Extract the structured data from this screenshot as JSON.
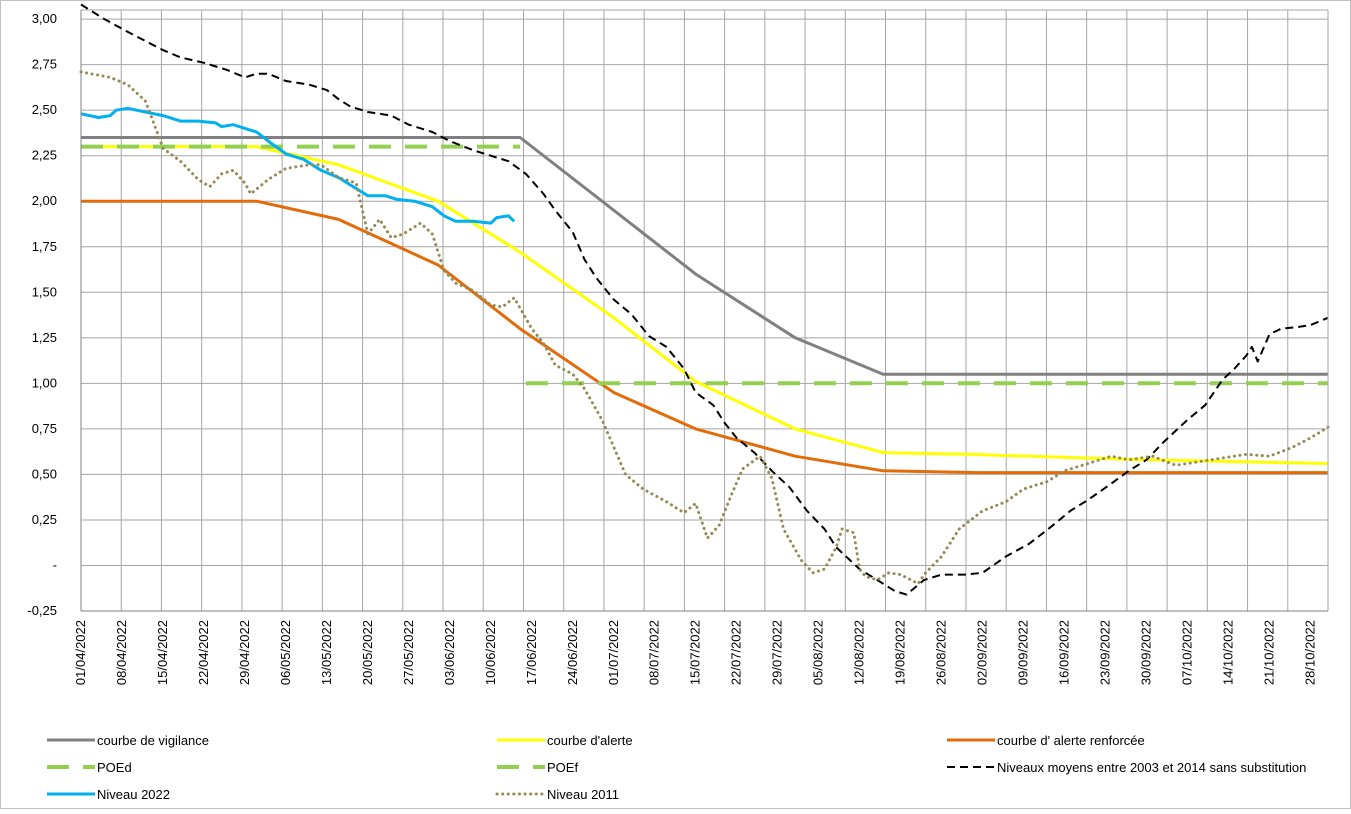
{
  "chart_data": {
    "type": "line",
    "title": "",
    "xlabel": "",
    "ylabel": "",
    "x_start": "01/04/2022",
    "x_end": "31/10/2022",
    "x_tick_labels": [
      "01/04/2022",
      "08/04/2022",
      "15/04/2022",
      "22/04/2022",
      "29/04/2022",
      "06/05/2022",
      "13/05/2022",
      "20/05/2022",
      "27/05/2022",
      "03/06/2022",
      "10/06/2022",
      "17/06/2022",
      "24/06/2022",
      "01/07/2022",
      "08/07/2022",
      "15/07/2022",
      "22/07/2022",
      "29/07/2022",
      "05/08/2022",
      "12/08/2022",
      "19/08/2022",
      "26/08/2022",
      "02/09/2022",
      "09/09/2022",
      "16/09/2022",
      "23/09/2022",
      "30/09/2022",
      "07/10/2022",
      "14/10/2022",
      "21/10/2022",
      "28/10/2022"
    ],
    "y_ticks": [
      -0.25,
      0,
      0.25,
      0.5,
      0.75,
      1,
      1.25,
      1.5,
      1.75,
      2,
      2.25,
      2.5,
      2.75,
      3
    ],
    "y_tick_labels": [
      "-0,25",
      "-",
      "0,25",
      "0,50",
      "0,75",
      "1,00",
      "1,25",
      "1,50",
      "1,75",
      "2,00",
      "2,25",
      "2,50",
      "2,75",
      "3,00"
    ],
    "ylim": [
      -0.25,
      3.05
    ],
    "grid": true,
    "legend_position": "bottom",
    "series": [
      {
        "name": "courbe de vigilance",
        "color": "#808080",
        "style": "solid",
        "points": [
          [
            "01/04/2022",
            2.35
          ],
          [
            "15/06/2022",
            2.35
          ],
          [
            "01/07/2022",
            1.95
          ],
          [
            "15/07/2022",
            1.6
          ],
          [
            "01/08/2022",
            1.25
          ],
          [
            "16/08/2022",
            1.05
          ],
          [
            "31/10/2022",
            1.05
          ]
        ]
      },
      {
        "name": "courbe d'alerte",
        "color": "#ffff00",
        "style": "solid",
        "points": [
          [
            "01/04/2022",
            2.3
          ],
          [
            "01/05/2022",
            2.3
          ],
          [
            "15/05/2022",
            2.2
          ],
          [
            "01/06/2022",
            2.0
          ],
          [
            "15/06/2022",
            1.72
          ],
          [
            "01/07/2022",
            1.36
          ],
          [
            "15/07/2022",
            1.01
          ],
          [
            "01/08/2022",
            0.75
          ],
          [
            "16/08/2022",
            0.62
          ],
          [
            "31/08/2022",
            0.61
          ],
          [
            "30/09/2022",
            0.58
          ],
          [
            "31/10/2022",
            0.56
          ]
        ]
      },
      {
        "name": "courbe d' alerte renforcée",
        "color": "#e36c0a",
        "style": "solid",
        "points": [
          [
            "01/04/2022",
            2.0
          ],
          [
            "01/05/2022",
            2.0
          ],
          [
            "15/05/2022",
            1.9
          ],
          [
            "01/06/2022",
            1.65
          ],
          [
            "15/06/2022",
            1.3
          ],
          [
            "01/07/2022",
            0.95
          ],
          [
            "15/07/2022",
            0.75
          ],
          [
            "01/08/2022",
            0.6
          ],
          [
            "16/08/2022",
            0.52
          ],
          [
            "01/09/2022",
            0.51
          ],
          [
            "31/10/2022",
            0.51
          ]
        ]
      },
      {
        "name": "POEd",
        "color": "#92d050",
        "style": "dashed-thick",
        "points": [
          [
            "01/04/2022",
            2.3
          ],
          [
            "15/06/2022",
            2.3
          ]
        ]
      },
      {
        "name": "POEf",
        "color": "#92d050",
        "style": "dashed-thick",
        "points": [
          [
            "16/06/2022",
            1.0
          ],
          [
            "31/10/2022",
            1.0
          ]
        ]
      },
      {
        "name": "Niveaux moyens entre 2003 et 2014 sans substitution",
        "color": "#000000",
        "style": "dashed",
        "points": [
          [
            "01/04/2022",
            3.08
          ],
          [
            "05/04/2022",
            3.0
          ],
          [
            "09/04/2022",
            2.93
          ],
          [
            "12/04/2022",
            2.88
          ],
          [
            "15/04/2022",
            2.83
          ],
          [
            "18/04/2022",
            2.79
          ],
          [
            "22/04/2022",
            2.76
          ],
          [
            "26/04/2022",
            2.72
          ],
          [
            "29/04/2022",
            2.68
          ],
          [
            "01/05/2022",
            2.7
          ],
          [
            "03/05/2022",
            2.7
          ],
          [
            "06/05/2022",
            2.66
          ],
          [
            "10/05/2022",
            2.64
          ],
          [
            "13/05/2022",
            2.61
          ],
          [
            "15/05/2022",
            2.56
          ],
          [
            "17/05/2022",
            2.52
          ],
          [
            "20/05/2022",
            2.49
          ],
          [
            "24/05/2022",
            2.47
          ],
          [
            "27/05/2022",
            2.42
          ],
          [
            "31/05/2022",
            2.38
          ],
          [
            "03/06/2022",
            2.33
          ],
          [
            "07/06/2022",
            2.28
          ],
          [
            "10/06/2022",
            2.25
          ],
          [
            "13/06/2022",
            2.22
          ],
          [
            "16/06/2022",
            2.15
          ],
          [
            "19/06/2022",
            2.04
          ],
          [
            "21/06/2022",
            1.95
          ],
          [
            "24/06/2022",
            1.83
          ],
          [
            "26/06/2022",
            1.68
          ],
          [
            "28/06/2022",
            1.58
          ],
          [
            "01/07/2022",
            1.46
          ],
          [
            "04/07/2022",
            1.38
          ],
          [
            "07/07/2022",
            1.26
          ],
          [
            "10/07/2022",
            1.2
          ],
          [
            "13/07/2022",
            1.08
          ],
          [
            "15/07/2022",
            0.95
          ],
          [
            "18/07/2022",
            0.88
          ],
          [
            "20/07/2022",
            0.78
          ],
          [
            "22/07/2022",
            0.7
          ],
          [
            "25/07/2022",
            0.62
          ],
          [
            "28/07/2022",
            0.52
          ],
          [
            "31/07/2022",
            0.43
          ],
          [
            "03/08/2022",
            0.3
          ],
          [
            "06/08/2022",
            0.2
          ],
          [
            "08/08/2022",
            0.1
          ],
          [
            "12/08/2022",
            -0.02
          ],
          [
            "15/08/2022",
            -0.08
          ],
          [
            "18/08/2022",
            -0.14
          ],
          [
            "20/08/2022",
            -0.16
          ],
          [
            "23/08/2022",
            -0.08
          ],
          [
            "26/08/2022",
            -0.05
          ],
          [
            "30/08/2022",
            -0.05
          ],
          [
            "02/09/2022",
            -0.04
          ],
          [
            "06/09/2022",
            0.05
          ],
          [
            "10/09/2022",
            0.12
          ],
          [
            "14/09/2022",
            0.22
          ],
          [
            "17/09/2022",
            0.3
          ],
          [
            "20/09/2022",
            0.36
          ],
          [
            "24/09/2022",
            0.45
          ],
          [
            "27/09/2022",
            0.52
          ],
          [
            "30/09/2022",
            0.58
          ],
          [
            "03/10/2022",
            0.68
          ],
          [
            "07/10/2022",
            0.8
          ],
          [
            "10/10/2022",
            0.88
          ],
          [
            "13/10/2022",
            1.02
          ],
          [
            "15/10/2022",
            1.08
          ],
          [
            "17/10/2022",
            1.15
          ],
          [
            "18/10/2022",
            1.2
          ],
          [
            "19/10/2022",
            1.12
          ],
          [
            "21/10/2022",
            1.27
          ],
          [
            "23/10/2022",
            1.3
          ],
          [
            "26/10/2022",
            1.31
          ],
          [
            "28/10/2022",
            1.32
          ],
          [
            "31/10/2022",
            1.36
          ]
        ]
      },
      {
        "name": "Niveau 2022",
        "color": "#00b0f0",
        "style": "solid",
        "points": [
          [
            "01/04/2022",
            2.48
          ],
          [
            "04/04/2022",
            2.46
          ],
          [
            "06/04/2022",
            2.47
          ],
          [
            "07/04/2022",
            2.5
          ],
          [
            "09/04/2022",
            2.51
          ],
          [
            "12/04/2022",
            2.49
          ],
          [
            "15/04/2022",
            2.47
          ],
          [
            "18/04/2022",
            2.44
          ],
          [
            "21/04/2022",
            2.44
          ],
          [
            "24/04/2022",
            2.43
          ],
          [
            "25/04/2022",
            2.41
          ],
          [
            "27/04/2022",
            2.42
          ],
          [
            "29/04/2022",
            2.4
          ],
          [
            "01/05/2022",
            2.38
          ],
          [
            "03/05/2022",
            2.33
          ],
          [
            "06/05/2022",
            2.26
          ],
          [
            "09/05/2022",
            2.23
          ],
          [
            "12/05/2022",
            2.17
          ],
          [
            "15/05/2022",
            2.13
          ],
          [
            "18/05/2022",
            2.07
          ],
          [
            "20/05/2022",
            2.03
          ],
          [
            "23/05/2022",
            2.03
          ],
          [
            "25/05/2022",
            2.01
          ],
          [
            "28/05/2022",
            2.0
          ],
          [
            "31/05/2022",
            1.97
          ],
          [
            "02/06/2022",
            1.92
          ],
          [
            "04/06/2022",
            1.89
          ],
          [
            "07/06/2022",
            1.89
          ],
          [
            "10/06/2022",
            1.88
          ],
          [
            "11/06/2022",
            1.91
          ],
          [
            "13/06/2022",
            1.92
          ],
          [
            "14/06/2022",
            1.89
          ]
        ]
      },
      {
        "name": "Niveau 2011",
        "color": "#948a54",
        "style": "dotted",
        "points": [
          [
            "01/04/2022",
            2.71
          ],
          [
            "06/04/2022",
            2.68
          ],
          [
            "09/04/2022",
            2.64
          ],
          [
            "12/04/2022",
            2.55
          ],
          [
            "14/04/2022",
            2.38
          ],
          [
            "15/04/2022",
            2.29
          ],
          [
            "18/04/2022",
            2.22
          ],
          [
            "21/04/2022",
            2.12
          ],
          [
            "23/04/2022",
            2.08
          ],
          [
            "25/04/2022",
            2.15
          ],
          [
            "27/04/2022",
            2.17
          ],
          [
            "29/04/2022",
            2.1
          ],
          [
            "30/04/2022",
            2.04
          ],
          [
            "03/05/2022",
            2.12
          ],
          [
            "06/05/2022",
            2.18
          ],
          [
            "10/05/2022",
            2.2
          ],
          [
            "12/05/2022",
            2.2
          ],
          [
            "15/05/2022",
            2.13
          ],
          [
            "18/05/2022",
            2.1
          ],
          [
            "20/05/2022",
            1.82
          ],
          [
            "22/05/2022",
            1.9
          ],
          [
            "24/05/2022",
            1.8
          ],
          [
            "26/05/2022",
            1.82
          ],
          [
            "29/05/2022",
            1.88
          ],
          [
            "31/05/2022",
            1.82
          ],
          [
            "02/06/2022",
            1.62
          ],
          [
            "04/06/2022",
            1.55
          ],
          [
            "07/06/2022",
            1.51
          ],
          [
            "10/06/2022",
            1.43
          ],
          [
            "12/06/2022",
            1.42
          ],
          [
            "14/06/2022",
            1.47
          ],
          [
            "17/06/2022",
            1.3
          ],
          [
            "19/06/2022",
            1.22
          ],
          [
            "21/06/2022",
            1.1
          ],
          [
            "24/06/2022",
            1.05
          ],
          [
            "26/06/2022",
            0.97
          ],
          [
            "29/06/2022",
            0.8
          ],
          [
            "01/07/2022",
            0.65
          ],
          [
            "03/07/2022",
            0.5
          ],
          [
            "06/07/2022",
            0.42
          ],
          [
            "10/07/2022",
            0.35
          ],
          [
            "13/07/2022",
            0.29
          ],
          [
            "15/07/2022",
            0.34
          ],
          [
            "17/07/2022",
            0.15
          ],
          [
            "19/07/2022",
            0.22
          ],
          [
            "21/07/2022",
            0.38
          ],
          [
            "23/07/2022",
            0.53
          ],
          [
            "26/07/2022",
            0.6
          ],
          [
            "28/07/2022",
            0.48
          ],
          [
            "30/07/2022",
            0.2
          ],
          [
            "02/08/2022",
            0.03
          ],
          [
            "04/08/2022",
            -0.04
          ],
          [
            "06/08/2022",
            -0.02
          ],
          [
            "08/08/2022",
            0.1
          ],
          [
            "09/08/2022",
            0.2
          ],
          [
            "11/08/2022",
            0.18
          ],
          [
            "12/08/2022",
            -0.02
          ],
          [
            "13/08/2022",
            -0.06
          ],
          [
            "15/08/2022",
            -0.08
          ],
          [
            "17/08/2022",
            -0.04
          ],
          [
            "19/08/2022",
            -0.05
          ],
          [
            "22/08/2022",
            -0.1
          ],
          [
            "23/08/2022",
            -0.05
          ],
          [
            "26/08/2022",
            0.05
          ],
          [
            "29/08/2022",
            0.2
          ],
          [
            "02/09/2022",
            0.3
          ],
          [
            "06/09/2022",
            0.35
          ],
          [
            "09/09/2022",
            0.42
          ],
          [
            "13/09/2022",
            0.46
          ],
          [
            "16/09/2022",
            0.52
          ],
          [
            "20/09/2022",
            0.56
          ],
          [
            "24/09/2022",
            0.6
          ],
          [
            "27/09/2022",
            0.58
          ],
          [
            "01/10/2022",
            0.6
          ],
          [
            "05/10/2022",
            0.55
          ],
          [
            "09/10/2022",
            0.57
          ],
          [
            "13/10/2022",
            0.59
          ],
          [
            "17/10/2022",
            0.61
          ],
          [
            "21/10/2022",
            0.6
          ],
          [
            "25/10/2022",
            0.65
          ],
          [
            "28/10/2022",
            0.7
          ],
          [
            "31/10/2022",
            0.76
          ]
        ]
      }
    ],
    "legend": [
      {
        "label": "courbe de vigilance",
        "series": 0
      },
      {
        "label": "courbe d'alerte",
        "series": 1
      },
      {
        "label": "courbe d' alerte renforcée",
        "series": 2
      },
      {
        "label": "POEd",
        "series": 3
      },
      {
        "label": "POEf",
        "series": 4
      },
      {
        "label": "Niveaux moyens entre 2003 et 2014 sans substitution",
        "series": 5
      },
      {
        "label": "Niveau 2022",
        "series": 6
      },
      {
        "label": "Niveau 2011",
        "series": 7
      }
    ]
  }
}
